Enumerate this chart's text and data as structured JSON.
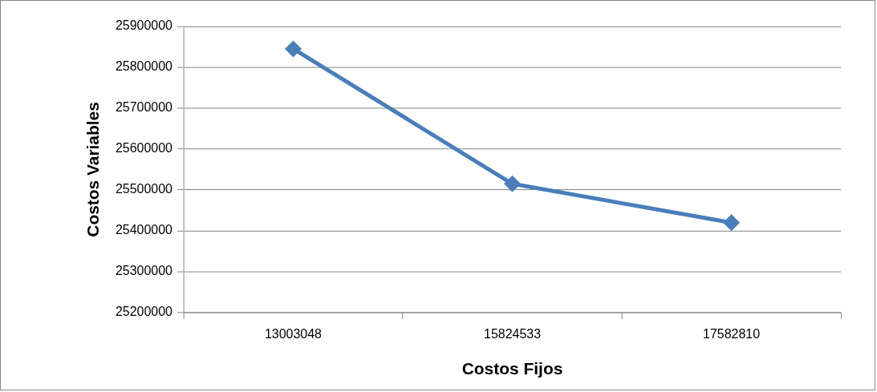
{
  "chart_data": {
    "type": "line",
    "xlabel": "Costos Fijos",
    "ylabel": "Costos Variables",
    "categories": [
      "13003048",
      "15824533",
      "17582810"
    ],
    "series": [
      {
        "color": "#4a7ebb",
        "values": [
          25845000,
          25515000,
          25420000
        ]
      }
    ],
    "ylim": [
      25200000,
      25900000
    ],
    "yticks": [
      25200000,
      25300000,
      25400000,
      25500000,
      25600000,
      25700000,
      25800000,
      25900000
    ],
    "grid": "y",
    "legend": false,
    "marker": "diamond",
    "line_style": "solid"
  }
}
